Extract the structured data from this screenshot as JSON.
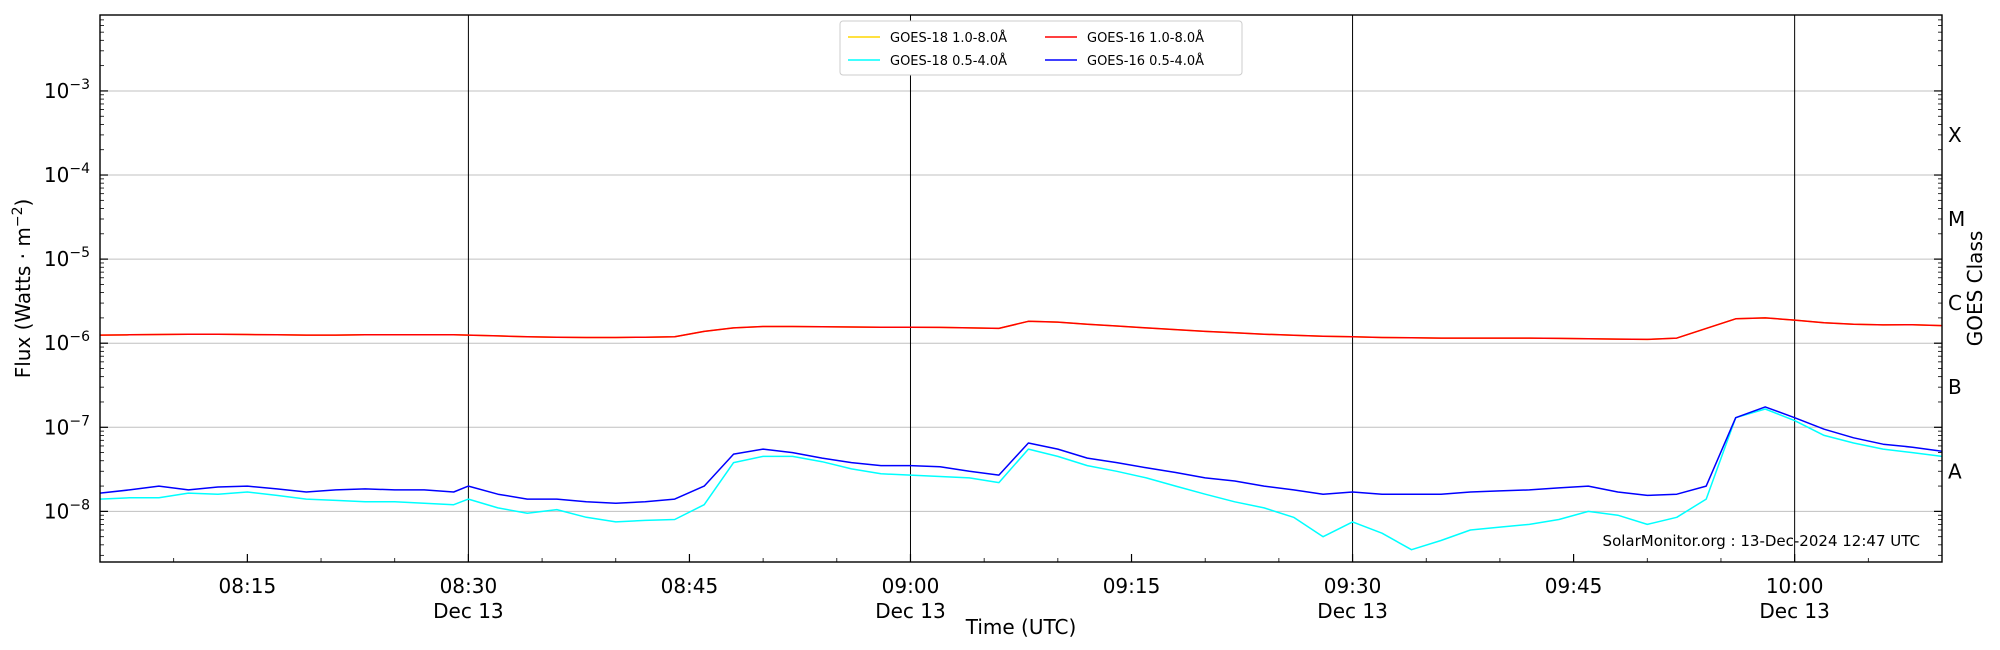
{
  "chart_data": {
    "type": "line",
    "xlabel": "Time (UTC)",
    "ylabel": "Flux (Watts · m⁻²)",
    "y_scale": "log",
    "ylim": [
      2.5e-09,
      0.008
    ],
    "xlim": [
      "2024-12-13 08:05",
      "2024-12-13 10:10"
    ],
    "x_ticks": [
      {
        "time": "08:15",
        "date": ""
      },
      {
        "time": "08:30",
        "date": "Dec 13"
      },
      {
        "time": "08:45",
        "date": ""
      },
      {
        "time": "09:00",
        "date": "Dec 13"
      },
      {
        "time": "09:15",
        "date": ""
      },
      {
        "time": "09:30",
        "date": "Dec 13"
      },
      {
        "time": "09:45",
        "date": ""
      },
      {
        "time": "10:00",
        "date": "Dec 13"
      }
    ],
    "vertical_lines_at": [
      "08:30",
      "09:00",
      "09:30",
      "10:00"
    ],
    "y_ticks": [
      {
        "value": 1e-08,
        "label": "10",
        "exp": "−8"
      },
      {
        "value": 1e-07,
        "label": "10",
        "exp": "−7"
      },
      {
        "value": 1e-06,
        "label": "10",
        "exp": "−6"
      },
      {
        "value": 1e-05,
        "label": "10",
        "exp": "−5"
      },
      {
        "value": 0.0001,
        "label": "10",
        "exp": "−4"
      },
      {
        "value": 0.001,
        "label": "10",
        "exp": "−3"
      }
    ],
    "grid": "horizontal",
    "right_axis": {
      "label": "GOES Class",
      "classes": [
        {
          "label": "A",
          "value": 3e-08
        },
        {
          "label": "B",
          "value": 3e-07
        },
        {
          "label": "C",
          "value": 3e-06
        },
        {
          "label": "M",
          "value": 3e-05
        },
        {
          "label": "X",
          "value": 0.0003
        }
      ]
    },
    "legend": {
      "placement": "top-center",
      "entries": [
        {
          "name": "GOES-18 1.0-8.0Å",
          "color": "#ffd700"
        },
        {
          "name": "GOES-18 0.5-4.0Å",
          "color": "#00ffff"
        },
        {
          "name": "GOES-16 1.0-8.0Å",
          "color": "#ff0000"
        },
        {
          "name": "GOES-16 0.5-4.0Å",
          "color": "#0000ff"
        }
      ]
    },
    "x": [
      "08:05",
      "08:07",
      "08:09",
      "08:11",
      "08:13",
      "08:15",
      "08:17",
      "08:19",
      "08:21",
      "08:23",
      "08:25",
      "08:27",
      "08:29",
      "08:30",
      "08:32",
      "08:34",
      "08:36",
      "08:38",
      "08:40",
      "08:42",
      "08:44",
      "08:46",
      "08:48",
      "08:50",
      "08:52",
      "08:54",
      "08:56",
      "08:58",
      "09:00",
      "09:02",
      "09:04",
      "09:06",
      "09:08",
      "09:10",
      "09:12",
      "09:14",
      "09:16",
      "09:18",
      "09:20",
      "09:22",
      "09:24",
      "09:26",
      "09:28",
      "09:30",
      "09:32",
      "09:34",
      "09:36",
      "09:38",
      "09:40",
      "09:42",
      "09:44",
      "09:46",
      "09:48",
      "09:50",
      "09:52",
      "09:54",
      "09:56",
      "09:58",
      "10:00",
      "10:02",
      "10:04",
      "10:06",
      "10:08",
      "10:10"
    ],
    "series": [
      {
        "name": "GOES-18 1.0-8.0Å",
        "color": "#ffd700",
        "values": [
          1.25e-06,
          1.26e-06,
          1.27e-06,
          1.28e-06,
          1.28e-06,
          1.27e-06,
          1.26e-06,
          1.25e-06,
          1.25e-06,
          1.26e-06,
          1.26e-06,
          1.26e-06,
          1.26e-06,
          1.25e-06,
          1.22e-06,
          1.19e-06,
          1.18e-06,
          1.17e-06,
          1.17e-06,
          1.18e-06,
          1.19e-06,
          1.38e-06,
          1.52e-06,
          1.58e-06,
          1.58e-06,
          1.57e-06,
          1.56e-06,
          1.55e-06,
          1.55e-06,
          1.54e-06,
          1.52e-06,
          1.5e-06,
          1.82e-06,
          1.78e-06,
          1.68e-06,
          1.6e-06,
          1.52e-06,
          1.45e-06,
          1.38e-06,
          1.33e-06,
          1.28e-06,
          1.24e-06,
          1.21e-06,
          1.19e-06,
          1.17e-06,
          1.16e-06,
          1.15e-06,
          1.15e-06,
          1.15e-06,
          1.15e-06,
          1.14e-06,
          1.13e-06,
          1.12e-06,
          1.11e-06,
          1.15e-06,
          1.5e-06,
          1.95e-06,
          2e-06,
          1.88e-06,
          1.75e-06,
          1.68e-06,
          1.65e-06,
          1.66e-06,
          1.62e-06
        ]
      },
      {
        "name": "GOES-18 0.5-4.0Å",
        "color": "#00ffff",
        "values": [
          1.4e-08,
          1.45e-08,
          1.45e-08,
          1.65e-08,
          1.6e-08,
          1.7e-08,
          1.55e-08,
          1.4e-08,
          1.35e-08,
          1.3e-08,
          1.3e-08,
          1.25e-08,
          1.2e-08,
          1.4e-08,
          1.1e-08,
          9.5e-09,
          1.05e-08,
          8.5e-09,
          7.5e-09,
          7.8e-09,
          8e-09,
          1.2e-08,
          3.8e-08,
          4.5e-08,
          4.5e-08,
          3.9e-08,
          3.2e-08,
          2.8e-08,
          2.7e-08,
          2.6e-08,
          2.5e-08,
          2.2e-08,
          5.5e-08,
          4.5e-08,
          3.5e-08,
          3e-08,
          2.5e-08,
          2e-08,
          1.6e-08,
          1.3e-08,
          1.1e-08,
          8.5e-09,
          5e-09,
          7.5e-09,
          5.5e-09,
          3.5e-09,
          4.5e-09,
          6e-09,
          6.5e-09,
          7e-09,
          8e-09,
          1e-08,
          9e-09,
          7e-09,
          8.5e-09,
          1.4e-08,
          1.3e-07,
          1.65e-07,
          1.2e-07,
          8e-08,
          6.5e-08,
          5.5e-08,
          5e-08,
          4.5e-08
        ]
      },
      {
        "name": "GOES-16 1.0-8.0Å",
        "color": "#ff0000",
        "values": [
          1.25e-06,
          1.26e-06,
          1.27e-06,
          1.28e-06,
          1.28e-06,
          1.27e-06,
          1.26e-06,
          1.25e-06,
          1.25e-06,
          1.26e-06,
          1.26e-06,
          1.26e-06,
          1.26e-06,
          1.25e-06,
          1.22e-06,
          1.19e-06,
          1.18e-06,
          1.17e-06,
          1.17e-06,
          1.18e-06,
          1.19e-06,
          1.38e-06,
          1.52e-06,
          1.58e-06,
          1.58e-06,
          1.57e-06,
          1.56e-06,
          1.55e-06,
          1.55e-06,
          1.54e-06,
          1.52e-06,
          1.5e-06,
          1.82e-06,
          1.78e-06,
          1.68e-06,
          1.6e-06,
          1.52e-06,
          1.45e-06,
          1.38e-06,
          1.33e-06,
          1.28e-06,
          1.24e-06,
          1.21e-06,
          1.19e-06,
          1.17e-06,
          1.16e-06,
          1.15e-06,
          1.15e-06,
          1.15e-06,
          1.15e-06,
          1.14e-06,
          1.13e-06,
          1.12e-06,
          1.11e-06,
          1.15e-06,
          1.5e-06,
          1.95e-06,
          2e-06,
          1.88e-06,
          1.75e-06,
          1.68e-06,
          1.65e-06,
          1.66e-06,
          1.62e-06
        ]
      },
      {
        "name": "GOES-16 0.5-4.0Å",
        "color": "#0000ff",
        "values": [
          1.65e-08,
          1.8e-08,
          2e-08,
          1.8e-08,
          1.95e-08,
          2e-08,
          1.85e-08,
          1.7e-08,
          1.8e-08,
          1.85e-08,
          1.8e-08,
          1.8e-08,
          1.7e-08,
          2e-08,
          1.6e-08,
          1.4e-08,
          1.4e-08,
          1.3e-08,
          1.25e-08,
          1.3e-08,
          1.4e-08,
          2e-08,
          4.8e-08,
          5.5e-08,
          5e-08,
          4.3e-08,
          3.8e-08,
          3.5e-08,
          3.5e-08,
          3.4e-08,
          3e-08,
          2.7e-08,
          6.5e-08,
          5.5e-08,
          4.3e-08,
          3.8e-08,
          3.3e-08,
          2.9e-08,
          2.5e-08,
          2.3e-08,
          2e-08,
          1.8e-08,
          1.6e-08,
          1.7e-08,
          1.6e-08,
          1.6e-08,
          1.6e-08,
          1.7e-08,
          1.75e-08,
          1.8e-08,
          1.9e-08,
          2e-08,
          1.7e-08,
          1.55e-08,
          1.6e-08,
          2e-08,
          1.3e-07,
          1.75e-07,
          1.3e-07,
          9.5e-08,
          7.5e-08,
          6.3e-08,
          5.8e-08,
          5.2e-08
        ]
      }
    ],
    "annotation": "SolarMonitor.org : 13-Dec-2024 12:47 UTC"
  }
}
